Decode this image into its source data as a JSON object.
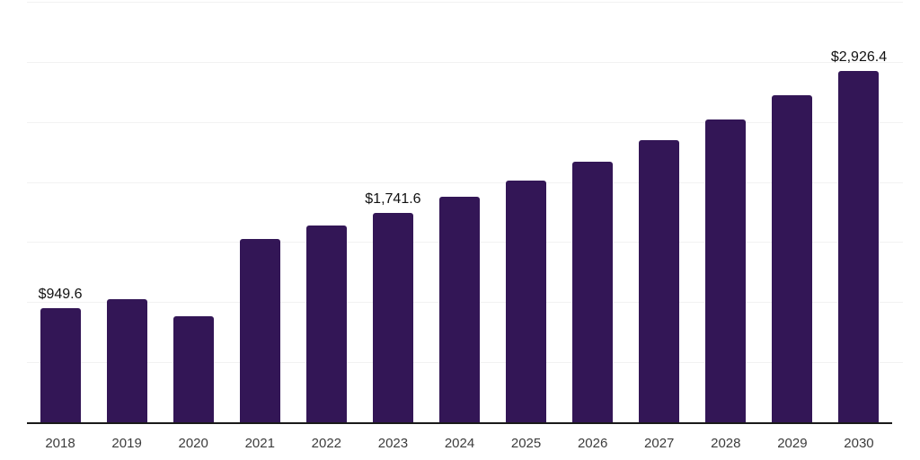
{
  "chart_data": {
    "type": "bar",
    "title": "",
    "categories": [
      "2018",
      "2019",
      "2020",
      "2021",
      "2022",
      "2023",
      "2024",
      "2025",
      "2026",
      "2027",
      "2028",
      "2029",
      "2030"
    ],
    "values": [
      949.6,
      1025,
      880,
      1525,
      1635,
      1741.6,
      1875,
      2015,
      2170,
      2345,
      2520,
      2725,
      2926.4
    ],
    "value_labels": {
      "2018": "$949.6",
      "2023": "$1,741.6",
      "2030": "$2,926.4"
    },
    "xlabel": "",
    "ylabel": "",
    "ylim": [
      0,
      3500
    ],
    "gridline_values": [
      500,
      1000,
      1500,
      2000,
      2500,
      3000,
      3500
    ],
    "grid": "horizontal-only",
    "legend": "none",
    "y_axis_tick_labels": "none",
    "bar_color": "#331656",
    "grid_color": "#f2f2f2",
    "axis_color": "#1a1a1a",
    "tick_label_color": "#3c3c3c",
    "value_label_color": "#111111"
  }
}
